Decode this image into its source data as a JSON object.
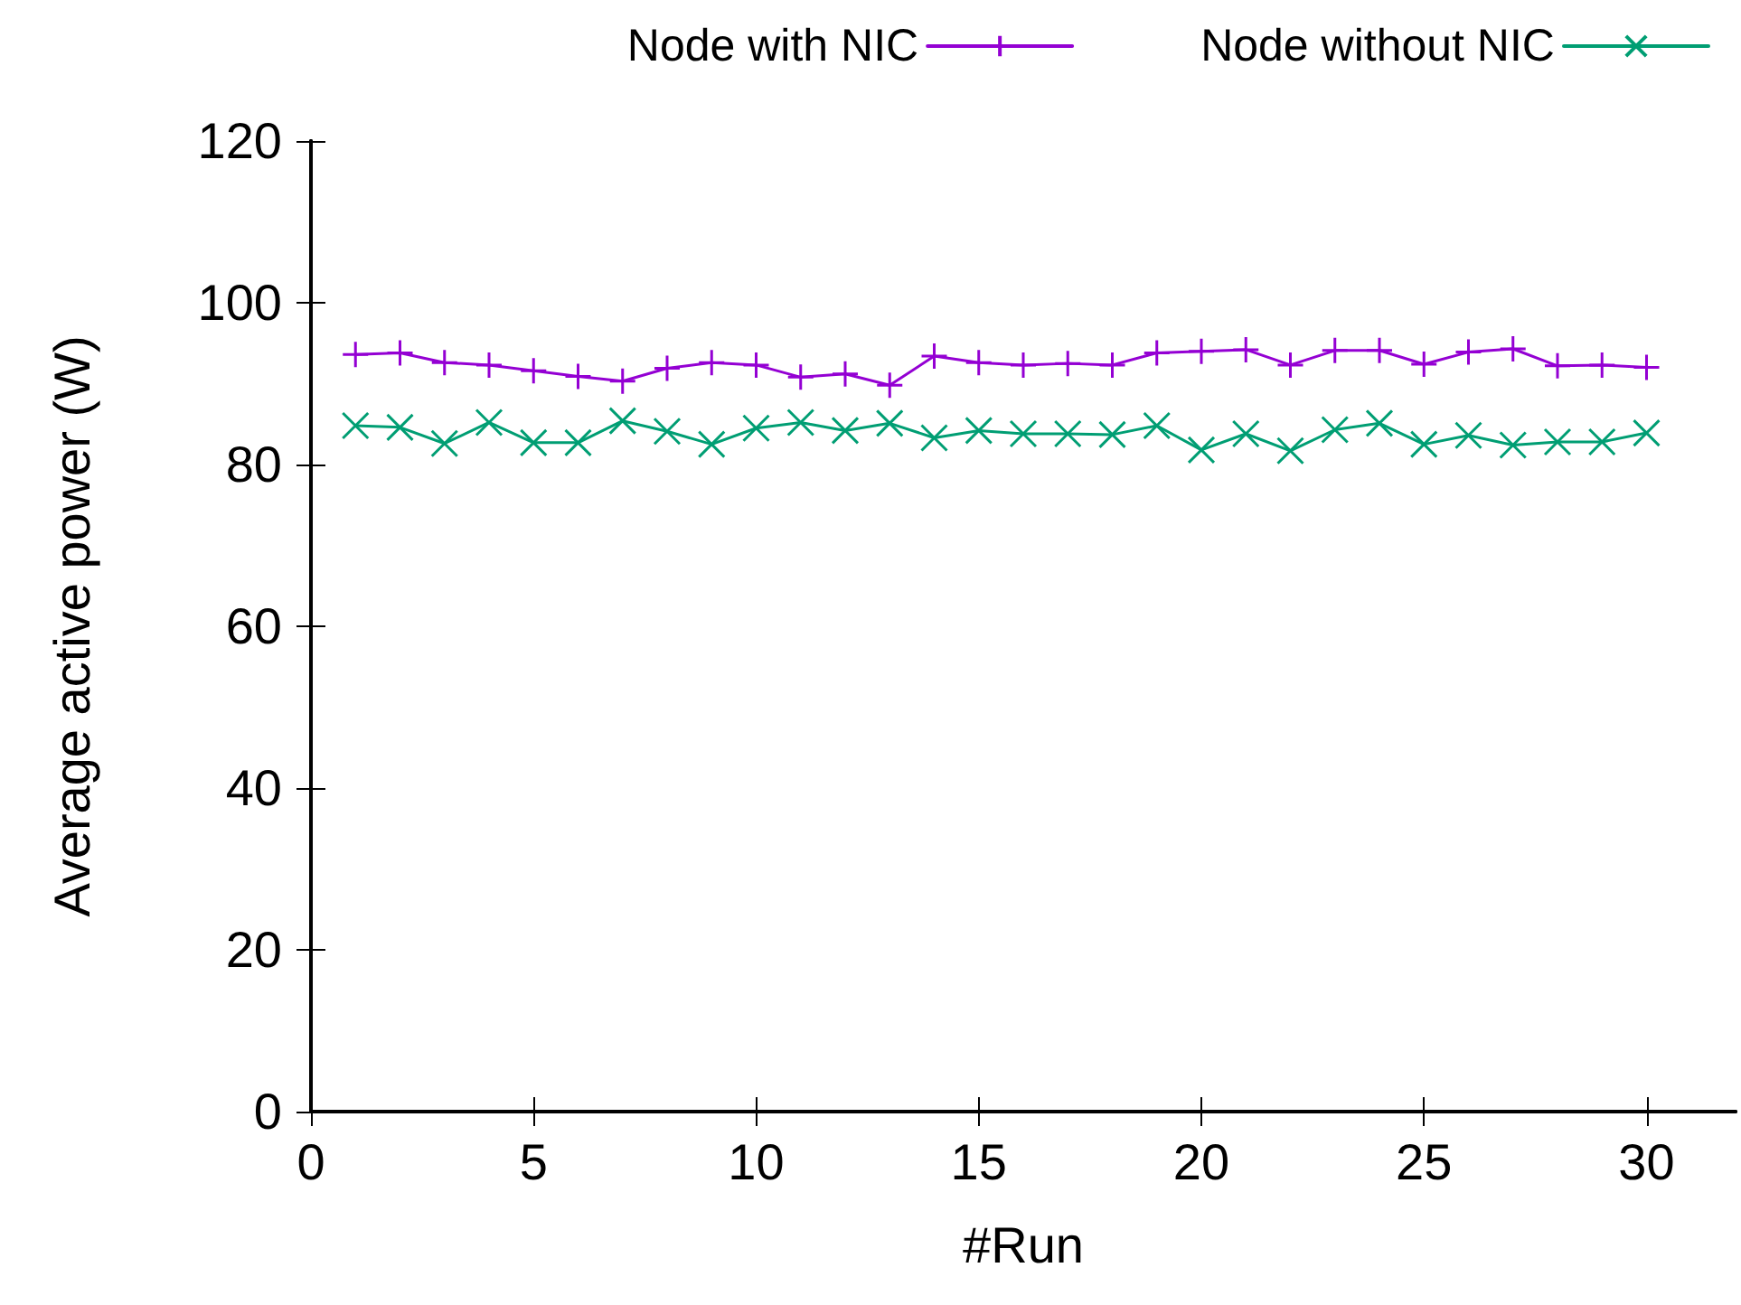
{
  "chart_data": {
    "type": "line",
    "xlabel": "#Run",
    "ylabel": "Average active power (W)",
    "x": [
      1,
      2,
      3,
      4,
      5,
      6,
      7,
      8,
      9,
      10,
      11,
      12,
      13,
      14,
      15,
      16,
      17,
      18,
      19,
      20,
      21,
      22,
      23,
      24,
      25,
      26,
      27,
      28,
      29,
      30
    ],
    "series": [
      {
        "name": "Node with NIC",
        "color": "#9400d3",
        "marker": "plus",
        "values": [
          93.6,
          93.8,
          92.6,
          92.3,
          91.6,
          90.9,
          90.3,
          91.9,
          92.6,
          92.3,
          90.8,
          91.2,
          89.8,
          93.4,
          92.6,
          92.3,
          92.5,
          92.3,
          93.8,
          94.0,
          94.2,
          92.3,
          94.1,
          94.1,
          92.4,
          93.9,
          94.3,
          92.2,
          92.3,
          92.0
        ]
      },
      {
        "name": "Node without NIC",
        "color": "#009e73",
        "marker": "cross",
        "values": [
          84.8,
          84.6,
          82.6,
          85.2,
          82.7,
          82.7,
          85.4,
          84.1,
          82.5,
          84.5,
          85.2,
          84.2,
          85.1,
          83.3,
          84.2,
          83.8,
          83.8,
          83.7,
          84.8,
          81.8,
          83.8,
          81.7,
          84.3,
          85.1,
          82.5,
          83.6,
          82.4,
          82.8,
          82.8,
          83.9
        ]
      }
    ],
    "xlim": [
      0,
      32
    ],
    "xticks": [
      0,
      5,
      10,
      15,
      20,
      25,
      30
    ],
    "ylim": [
      0,
      120
    ],
    "yticks": [
      0,
      20,
      40,
      60,
      80,
      100,
      120
    ],
    "grid": false,
    "legend": "top right",
    "line_style": "solid"
  }
}
